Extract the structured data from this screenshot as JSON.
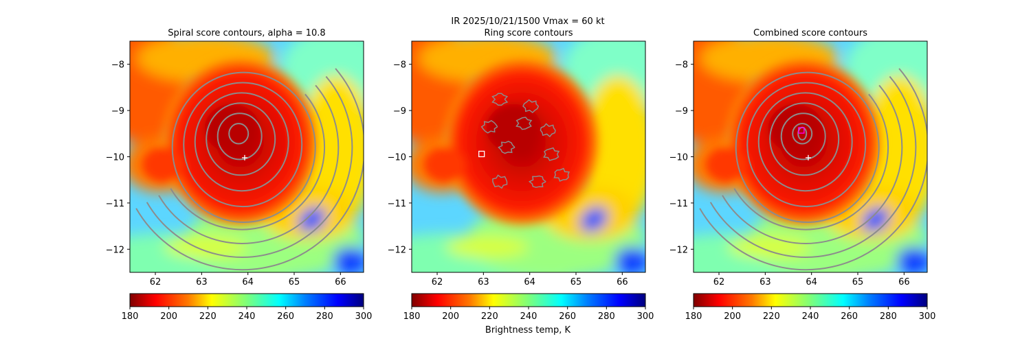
{
  "figure": {
    "suptitle_line1": "IR  2025/10/21/1500    Vmax = 60 kt",
    "colorbar_label": "Brightness temp, K"
  },
  "chart_data": [
    {
      "type": "heatmap",
      "title": "Spiral score contours, alpha = 10.8",
      "xlim": [
        61.45,
        66.5
      ],
      "ylim": [
        -12.5,
        -7.5
      ],
      "xticks": [
        62,
        63,
        64,
        65,
        66
      ],
      "yticks": [
        -8,
        -9,
        -10,
        -11,
        -12
      ],
      "colormap": "jet_r",
      "color_range": [
        180,
        300
      ],
      "colorbar_ticks": [
        180,
        200,
        220,
        240,
        260,
        280,
        300
      ],
      "storm_center": {
        "lon": 63.8,
        "lat": -9.5
      },
      "contours": "spiral score",
      "markers": [
        {
          "kind": "plus",
          "lon": 63.93,
          "lat": -10.02,
          "color": "#ffffff"
        }
      ]
    },
    {
      "type": "heatmap",
      "title": "Ring score contours",
      "xlim": [
        61.45,
        66.5
      ],
      "ylim": [
        -12.5,
        -7.5
      ],
      "xticks": [
        62,
        63,
        64,
        65,
        66
      ],
      "yticks": [
        -8,
        -9,
        -10,
        -11,
        -12
      ],
      "colormap": "jet_r",
      "color_range": [
        180,
        300
      ],
      "colorbar_ticks": [
        180,
        200,
        220,
        240,
        260,
        280,
        300
      ],
      "storm_center": {
        "lon": 63.8,
        "lat": -9.5
      },
      "contours": "ring score",
      "markers": [
        {
          "kind": "square",
          "lon": 62.96,
          "lat": -9.94,
          "color": "#ffffff"
        }
      ]
    },
    {
      "type": "heatmap",
      "title": "Combined score contours",
      "xlim": [
        61.45,
        66.5
      ],
      "ylim": [
        -12.5,
        -7.5
      ],
      "xticks": [
        62,
        63,
        64,
        65,
        66
      ],
      "yticks": [
        -8,
        -9,
        -10,
        -11,
        -12
      ],
      "colormap": "jet_r",
      "color_range": [
        180,
        300
      ],
      "colorbar_ticks": [
        180,
        200,
        220,
        240,
        260,
        280,
        300
      ],
      "storm_center": {
        "lon": 63.8,
        "lat": -9.5
      },
      "contours": "combined score",
      "markers": [
        {
          "kind": "plus",
          "lon": 63.93,
          "lat": -10.02,
          "color": "#ffffff"
        },
        {
          "kind": "square",
          "lon": 63.78,
          "lat": -9.43,
          "color": "#ff00ff"
        }
      ]
    }
  ]
}
